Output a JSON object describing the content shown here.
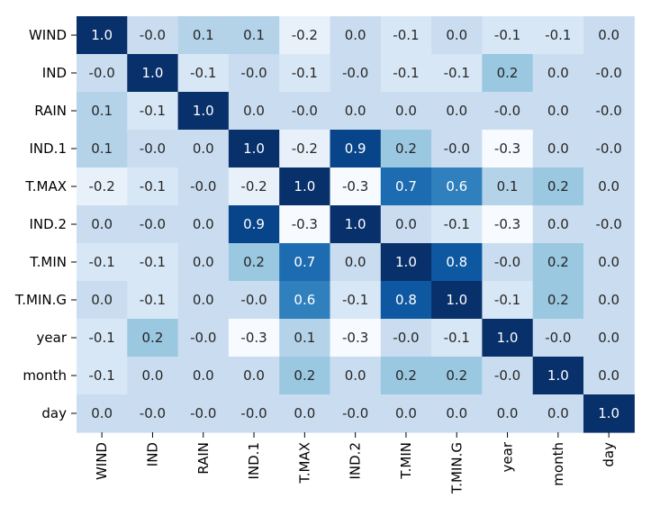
{
  "chart_data": {
    "type": "heatmap",
    "title": "",
    "xlabel": "",
    "ylabel": "",
    "x_labels": [
      "WIND",
      "IND",
      "RAIN",
      "IND.1",
      "T.MAX",
      "IND.2",
      "T.MIN",
      "T.MIN.G",
      "year",
      "month",
      "day"
    ],
    "y_labels": [
      "WIND",
      "IND",
      "RAIN",
      "IND.1",
      "T.MAX",
      "IND.2",
      "T.MIN",
      "T.MIN.G",
      "year",
      "month",
      "day"
    ],
    "values": [
      [
        1.0,
        -0.0,
        0.1,
        0.1,
        -0.2,
        0.0,
        -0.1,
        0.0,
        -0.1,
        -0.1,
        0.0
      ],
      [
        -0.0,
        1.0,
        -0.1,
        -0.0,
        -0.1,
        -0.0,
        -0.1,
        -0.1,
        0.2,
        0.0,
        -0.0
      ],
      [
        0.1,
        -0.1,
        1.0,
        0.0,
        -0.0,
        0.0,
        0.0,
        0.0,
        -0.0,
        0.0,
        -0.0
      ],
      [
        0.1,
        -0.0,
        0.0,
        1.0,
        -0.2,
        0.9,
        0.2,
        -0.0,
        -0.3,
        0.0,
        -0.0
      ],
      [
        -0.2,
        -0.1,
        -0.0,
        -0.2,
        1.0,
        -0.3,
        0.7,
        0.6,
        0.1,
        0.2,
        0.0
      ],
      [
        0.0,
        -0.0,
        0.0,
        0.9,
        -0.3,
        1.0,
        0.0,
        -0.1,
        -0.3,
        0.0,
        -0.0
      ],
      [
        -0.1,
        -0.1,
        0.0,
        0.2,
        0.7,
        0.0,
        1.0,
        0.8,
        -0.0,
        0.2,
        0.0
      ],
      [
        0.0,
        -0.1,
        0.0,
        -0.0,
        0.6,
        -0.1,
        0.8,
        1.0,
        -0.1,
        0.2,
        0.0
      ],
      [
        -0.1,
        0.2,
        -0.0,
        -0.3,
        0.1,
        -0.3,
        -0.0,
        -0.1,
        1.0,
        -0.0,
        0.0
      ],
      [
        -0.1,
        0.0,
        0.0,
        0.0,
        0.2,
        0.0,
        0.2,
        0.2,
        -0.0,
        1.0,
        0.0
      ],
      [
        0.0,
        -0.0,
        -0.0,
        -0.0,
        0.0,
        -0.0,
        0.0,
        0.0,
        0.0,
        0.0,
        1.0
      ]
    ],
    "value_display": [
      "1.0",
      "-0.0",
      "0.1",
      "0.1",
      "-0.2",
      "0.0",
      "-0.1",
      "0.0",
      "-0.1",
      "-0.1",
      "0.0",
      "-0.0",
      "1.0",
      "-0.1",
      "-0.0",
      "-0.1",
      "-0.0",
      "-0.1",
      "-0.1",
      "0.2",
      "0.0",
      "-0.0",
      "0.1",
      "-0.1",
      "1.0",
      "0.0",
      "-0.0",
      "0.0",
      "0.0",
      "0.0",
      "-0.0",
      "0.0",
      "-0.0",
      "0.1",
      "-0.0",
      "0.0",
      "1.0",
      "-0.2",
      "0.9",
      "0.2",
      "-0.0",
      "-0.3",
      "0.0",
      "-0.0",
      "-0.2",
      "-0.1",
      "-0.0",
      "-0.2",
      "1.0",
      "-0.3",
      "0.7",
      "0.6",
      "0.1",
      "0.2",
      "0.0",
      "0.0",
      "-0.0",
      "0.0",
      "0.9",
      "-0.3",
      "1.0",
      "0.0",
      "-0.1",
      "-0.3",
      "0.0",
      "-0.0",
      "-0.1",
      "-0.1",
      "0.0",
      "0.2",
      "0.7",
      "0.0",
      "1.0",
      "0.8",
      "-0.0",
      "0.2",
      "0.0",
      "0.0",
      "-0.1",
      "0.0",
      "-0.0",
      "0.6",
      "-0.1",
      "0.8",
      "1.0",
      "-0.1",
      "0.2",
      "0.0",
      "-0.1",
      "0.2",
      "-0.0",
      "-0.3",
      "0.1",
      "-0.3",
      "-0.0",
      "-0.1",
      "1.0",
      "-0.0",
      "0.0",
      "-0.1",
      "0.0",
      "0.0",
      "0.0",
      "0.2",
      "0.0",
      "0.2",
      "0.2",
      "-0.0",
      "1.0",
      "0.0",
      "0.0",
      "-0.0",
      "-0.0",
      "-0.0",
      "0.0",
      "-0.0",
      "0.0",
      "0.0",
      "0.0",
      "0.0",
      "1.0"
    ],
    "value_range": [
      -0.3,
      1.0
    ],
    "colormap": "Blues",
    "annotated": true,
    "colorbar": false,
    "grid": false,
    "legend": "none"
  }
}
